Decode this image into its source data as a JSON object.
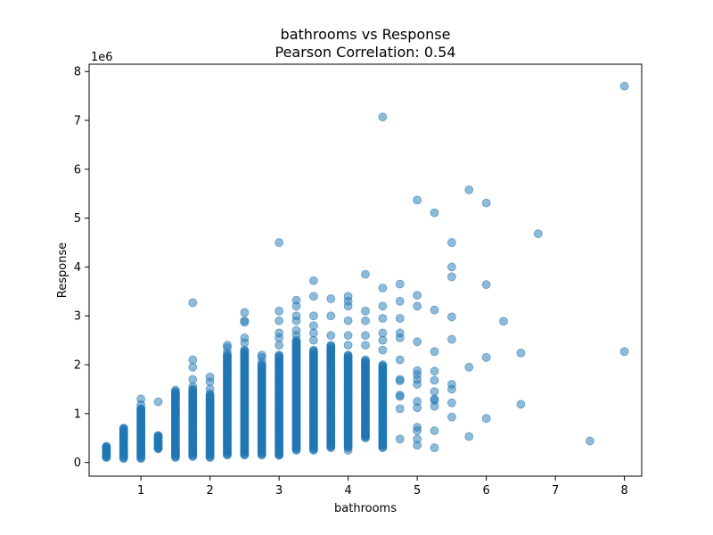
{
  "chart_data": {
    "type": "scatter",
    "title": "bathrooms vs Response",
    "subtitle": "Pearson Correlation: 0.54",
    "xlabel": "bathrooms",
    "ylabel": "Response",
    "y_multiplier_label": "1e6",
    "xlim": [
      0.25,
      8.25
    ],
    "ylim": [
      -0.28,
      8.15
    ],
    "x_ticks": [
      1,
      2,
      3,
      4,
      5,
      6,
      7,
      8
    ],
    "y_ticks": [
      0,
      1,
      2,
      3,
      4,
      5,
      6,
      7,
      8
    ],
    "grid": false,
    "marker_color": "#1f77b4",
    "marker_opacity": 0.5,
    "y_unit_scale": 1000000,
    "columns": [
      {
        "x": 0.5,
        "min": 0.1,
        "max": 0.33
      },
      {
        "x": 0.75,
        "min": 0.08,
        "max": 0.7
      },
      {
        "x": 1.0,
        "min": 0.08,
        "max": 1.1
      },
      {
        "x": 1.25,
        "min": 0.28,
        "max": 0.55
      },
      {
        "x": 1.5,
        "min": 0.1,
        "max": 1.45
      },
      {
        "x": 1.75,
        "min": 0.12,
        "max": 1.5
      },
      {
        "x": 2.0,
        "min": 0.1,
        "max": 1.4
      },
      {
        "x": 2.25,
        "min": 0.15,
        "max": 2.2
      },
      {
        "x": 2.5,
        "min": 0.15,
        "max": 2.3
      },
      {
        "x": 2.75,
        "min": 0.15,
        "max": 2.0
      },
      {
        "x": 3.0,
        "min": 0.15,
        "max": 2.2
      },
      {
        "x": 3.25,
        "min": 0.25,
        "max": 2.5
      },
      {
        "x": 3.5,
        "min": 0.25,
        "max": 2.3
      },
      {
        "x": 3.75,
        "min": 0.3,
        "max": 2.4
      },
      {
        "x": 4.0,
        "min": 0.3,
        "max": 2.2
      },
      {
        "x": 4.25,
        "min": 0.5,
        "max": 2.1
      },
      {
        "x": 4.5,
        "min": 0.3,
        "max": 2.0
      }
    ],
    "points": [
      {
        "x": 0.5,
        "y": 0.12
      },
      {
        "x": 0.5,
        "y": 0.28
      },
      {
        "x": 0.5,
        "y": 0.32
      },
      {
        "x": 0.75,
        "y": 0.7
      },
      {
        "x": 0.75,
        "y": 0.55
      },
      {
        "x": 1.0,
        "y": 1.3
      },
      {
        "x": 1.0,
        "y": 1.18
      },
      {
        "x": 1.0,
        "y": 1.1
      },
      {
        "x": 1.25,
        "y": 1.24
      },
      {
        "x": 1.25,
        "y": 0.55
      },
      {
        "x": 1.25,
        "y": 0.52
      },
      {
        "x": 1.25,
        "y": 0.38
      },
      {
        "x": 1.25,
        "y": 0.29
      },
      {
        "x": 1.5,
        "y": 1.48
      },
      {
        "x": 1.5,
        "y": 1.4
      },
      {
        "x": 1.75,
        "y": 3.27
      },
      {
        "x": 1.75,
        "y": 2.1
      },
      {
        "x": 1.75,
        "y": 1.95
      },
      {
        "x": 1.75,
        "y": 1.7
      },
      {
        "x": 1.75,
        "y": 1.55
      },
      {
        "x": 2.0,
        "y": 1.75
      },
      {
        "x": 2.0,
        "y": 1.65
      },
      {
        "x": 2.0,
        "y": 1.5
      },
      {
        "x": 2.25,
        "y": 2.4
      },
      {
        "x": 2.25,
        "y": 2.35
      },
      {
        "x": 2.25,
        "y": 2.25
      },
      {
        "x": 2.5,
        "y": 3.07
      },
      {
        "x": 2.5,
        "y": 2.9
      },
      {
        "x": 2.5,
        "y": 2.87
      },
      {
        "x": 2.5,
        "y": 2.55
      },
      {
        "x": 2.5,
        "y": 2.45
      },
      {
        "x": 2.75,
        "y": 2.2
      },
      {
        "x": 2.75,
        "y": 2.15
      },
      {
        "x": 2.75,
        "y": 2.05
      },
      {
        "x": 3.0,
        "y": 4.5
      },
      {
        "x": 3.0,
        "y": 3.1
      },
      {
        "x": 3.0,
        "y": 2.9
      },
      {
        "x": 3.0,
        "y": 2.65
      },
      {
        "x": 3.0,
        "y": 2.55
      },
      {
        "x": 3.0,
        "y": 2.4
      },
      {
        "x": 3.0,
        "y": 0.15
      },
      {
        "x": 3.25,
        "y": 3.32
      },
      {
        "x": 3.25,
        "y": 3.2
      },
      {
        "x": 3.25,
        "y": 3.0
      },
      {
        "x": 3.25,
        "y": 2.9
      },
      {
        "x": 3.25,
        "y": 2.7
      },
      {
        "x": 3.25,
        "y": 2.6
      },
      {
        "x": 3.5,
        "y": 3.72
      },
      {
        "x": 3.5,
        "y": 3.4
      },
      {
        "x": 3.5,
        "y": 3.0
      },
      {
        "x": 3.5,
        "y": 2.8
      },
      {
        "x": 3.5,
        "y": 2.65
      },
      {
        "x": 3.5,
        "y": 2.5
      },
      {
        "x": 3.75,
        "y": 3.35
      },
      {
        "x": 3.75,
        "y": 3.0
      },
      {
        "x": 3.75,
        "y": 2.6
      },
      {
        "x": 4.0,
        "y": 3.4
      },
      {
        "x": 4.0,
        "y": 3.3
      },
      {
        "x": 4.0,
        "y": 3.2
      },
      {
        "x": 4.0,
        "y": 2.9
      },
      {
        "x": 4.0,
        "y": 2.6
      },
      {
        "x": 4.0,
        "y": 2.4
      },
      {
        "x": 4.0,
        "y": 0.25
      },
      {
        "x": 4.25,
        "y": 3.85
      },
      {
        "x": 4.25,
        "y": 3.1
      },
      {
        "x": 4.25,
        "y": 2.9
      },
      {
        "x": 4.25,
        "y": 2.6
      },
      {
        "x": 4.25,
        "y": 2.4
      },
      {
        "x": 4.25,
        "y": 0.55
      },
      {
        "x": 4.5,
        "y": 7.07
      },
      {
        "x": 4.5,
        "y": 3.57
      },
      {
        "x": 4.5,
        "y": 3.2
      },
      {
        "x": 4.5,
        "y": 2.95
      },
      {
        "x": 4.5,
        "y": 2.65
      },
      {
        "x": 4.5,
        "y": 2.5
      },
      {
        "x": 4.5,
        "y": 2.3
      },
      {
        "x": 4.75,
        "y": 3.65
      },
      {
        "x": 4.75,
        "y": 3.3
      },
      {
        "x": 4.75,
        "y": 2.95
      },
      {
        "x": 4.75,
        "y": 2.65
      },
      {
        "x": 4.75,
        "y": 2.55
      },
      {
        "x": 4.75,
        "y": 2.1
      },
      {
        "x": 4.75,
        "y": 1.7
      },
      {
        "x": 4.75,
        "y": 1.67
      },
      {
        "x": 4.75,
        "y": 1.38
      },
      {
        "x": 4.75,
        "y": 1.35
      },
      {
        "x": 4.75,
        "y": 1.1
      },
      {
        "x": 4.75,
        "y": 0.48
      },
      {
        "x": 5.0,
        "y": 5.37
      },
      {
        "x": 5.0,
        "y": 3.42
      },
      {
        "x": 5.0,
        "y": 3.2
      },
      {
        "x": 5.0,
        "y": 2.47
      },
      {
        "x": 5.0,
        "y": 1.88
      },
      {
        "x": 5.0,
        "y": 1.8
      },
      {
        "x": 5.0,
        "y": 1.7
      },
      {
        "x": 5.0,
        "y": 1.6
      },
      {
        "x": 5.0,
        "y": 1.25
      },
      {
        "x": 5.0,
        "y": 1.12
      },
      {
        "x": 5.0,
        "y": 0.72
      },
      {
        "x": 5.0,
        "y": 0.65
      },
      {
        "x": 5.0,
        "y": 0.48
      },
      {
        "x": 5.0,
        "y": 0.35
      },
      {
        "x": 5.25,
        "y": 5.11
      },
      {
        "x": 5.25,
        "y": 3.12
      },
      {
        "x": 5.25,
        "y": 2.27
      },
      {
        "x": 5.25,
        "y": 1.87
      },
      {
        "x": 5.25,
        "y": 1.68
      },
      {
        "x": 5.25,
        "y": 1.45
      },
      {
        "x": 5.25,
        "y": 1.3
      },
      {
        "x": 5.25,
        "y": 1.27
      },
      {
        "x": 5.25,
        "y": 1.15
      },
      {
        "x": 5.25,
        "y": 0.65
      },
      {
        "x": 5.25,
        "y": 0.3
      },
      {
        "x": 5.5,
        "y": 4.5
      },
      {
        "x": 5.5,
        "y": 4.0
      },
      {
        "x": 5.5,
        "y": 3.8
      },
      {
        "x": 5.5,
        "y": 2.98
      },
      {
        "x": 5.5,
        "y": 2.52
      },
      {
        "x": 5.5,
        "y": 1.6
      },
      {
        "x": 5.5,
        "y": 1.5
      },
      {
        "x": 5.5,
        "y": 1.22
      },
      {
        "x": 5.5,
        "y": 0.93
      },
      {
        "x": 5.75,
        "y": 5.58
      },
      {
        "x": 5.75,
        "y": 1.95
      },
      {
        "x": 5.75,
        "y": 0.53
      },
      {
        "x": 6.0,
        "y": 5.31
      },
      {
        "x": 6.0,
        "y": 3.64
      },
      {
        "x": 6.0,
        "y": 2.15
      },
      {
        "x": 6.0,
        "y": 0.9
      },
      {
        "x": 6.25,
        "y": 2.89
      },
      {
        "x": 6.5,
        "y": 2.24
      },
      {
        "x": 6.5,
        "y": 1.19
      },
      {
        "x": 6.75,
        "y": 4.68
      },
      {
        "x": 7.5,
        "y": 0.44
      },
      {
        "x": 8.0,
        "y": 7.7
      },
      {
        "x": 8.0,
        "y": 2.27
      }
    ]
  }
}
